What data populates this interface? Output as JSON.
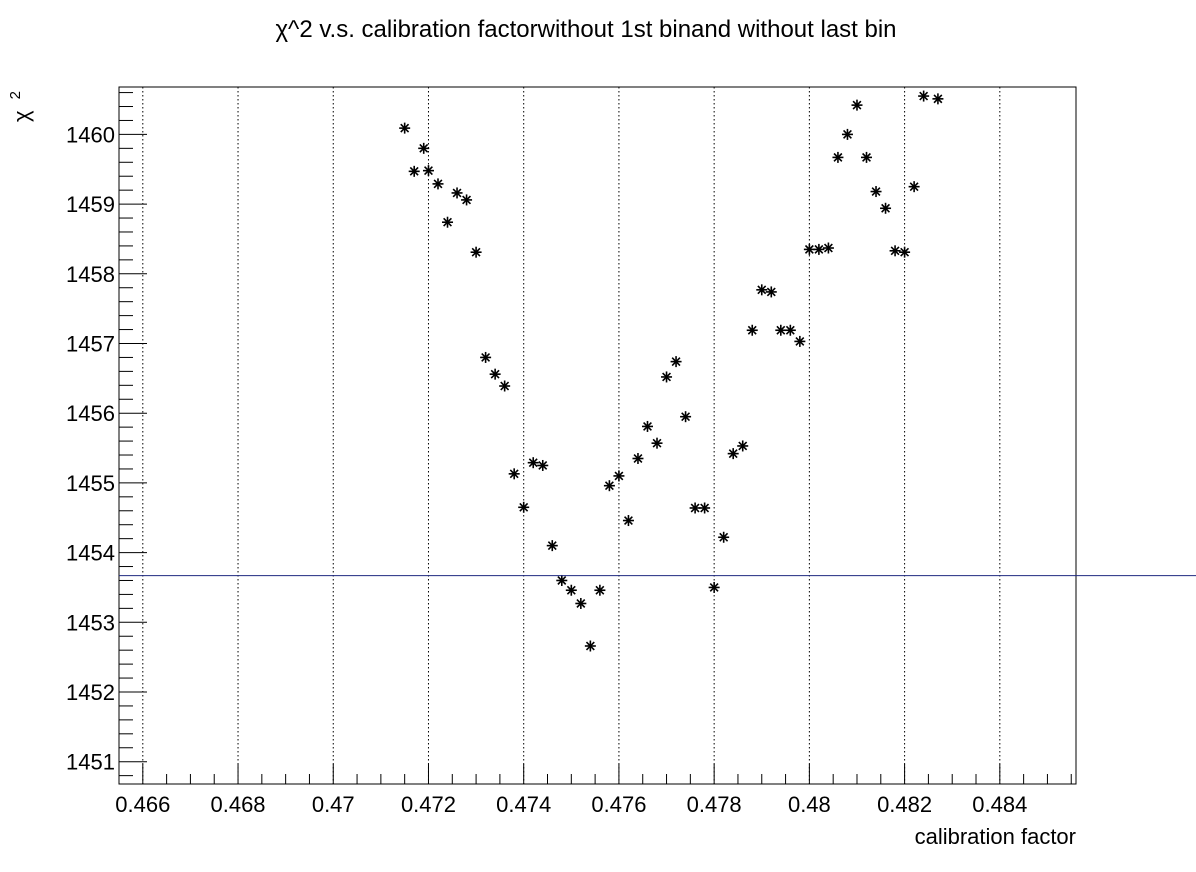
{
  "chart_data": {
    "type": "scatter",
    "title": "χ^2 v.s. calibration factorwithout 1st binand without last bin",
    "xlabel": "calibration factor",
    "ylabel_main": "χ",
    "ylabel_sup": "2",
    "xlim": [
      0.4655,
      0.4856
    ],
    "ylim": [
      1450.68,
      1460.68
    ],
    "x_major_ticks": [
      0.466,
      0.468,
      0.47,
      0.472,
      0.474,
      0.476,
      0.478,
      0.48,
      0.482,
      0.484
    ],
    "x_tick_labels": [
      "0.466",
      "0.468",
      "0.47",
      "0.472",
      "0.474",
      "0.476",
      "0.478",
      "0.48",
      "0.482",
      "0.484"
    ],
    "y_major_ticks": [
      1451,
      1452,
      1453,
      1454,
      1455,
      1456,
      1457,
      1458,
      1459,
      1460
    ],
    "y_tick_labels": [
      "1451",
      "1452",
      "1453",
      "1454",
      "1455",
      "1456",
      "1457",
      "1458",
      "1459",
      "1460"
    ],
    "grid": "x-major dotted",
    "reference_line": {
      "y": 1453.67,
      "color": "#1f2a80"
    },
    "marker": "asterisk",
    "colors": {
      "points": "#000000",
      "reference": "#1f2a80",
      "frame": "#000000",
      "grid": "#000000"
    },
    "x": [
      0.4715,
      0.4717,
      0.4719,
      0.472,
      0.4722,
      0.4724,
      0.4726,
      0.4728,
      0.473,
      0.4732,
      0.4734,
      0.4736,
      0.4738,
      0.474,
      0.4742,
      0.4744,
      0.4746,
      0.4748,
      0.475,
      0.4752,
      0.4754,
      0.4756,
      0.4758,
      0.476,
      0.4762,
      0.4764,
      0.4766,
      0.4768,
      0.477,
      0.4772,
      0.4774,
      0.4776,
      0.4778,
      0.478,
      0.4782,
      0.4784,
      0.4786,
      0.4788,
      0.479,
      0.4792,
      0.4794,
      0.4796,
      0.4798,
      0.48,
      0.4802,
      0.4804,
      0.4806,
      0.4808,
      0.481,
      0.4812,
      0.4814,
      0.4816,
      0.4818,
      0.482,
      0.4822,
      0.4824,
      0.4827
    ],
    "y": [
      1460.09,
      1459.47,
      1459.8,
      1459.48,
      1459.29,
      1458.74,
      1459.16,
      1459.06,
      1458.31,
      1456.8,
      1456.56,
      1456.39,
      1455.13,
      1454.65,
      1455.29,
      1455.25,
      1454.1,
      1453.6,
      1453.46,
      1453.27,
      1452.66,
      1453.46,
      1454.96,
      1455.1,
      1454.46,
      1455.35,
      1455.81,
      1455.57,
      1456.52,
      1456.74,
      1455.95,
      1454.64,
      1454.64,
      1453.5,
      1454.22,
      1455.42,
      1455.53,
      1457.19,
      1457.77,
      1457.74,
      1457.19,
      1457.19,
      1457.03,
      1458.35,
      1458.35,
      1458.37,
      1459.67,
      1460.0,
      1460.42,
      1459.67,
      1459.18,
      1458.94,
      1458.33,
      1458.31,
      1459.25,
      1460.55,
      1460.51
    ]
  }
}
